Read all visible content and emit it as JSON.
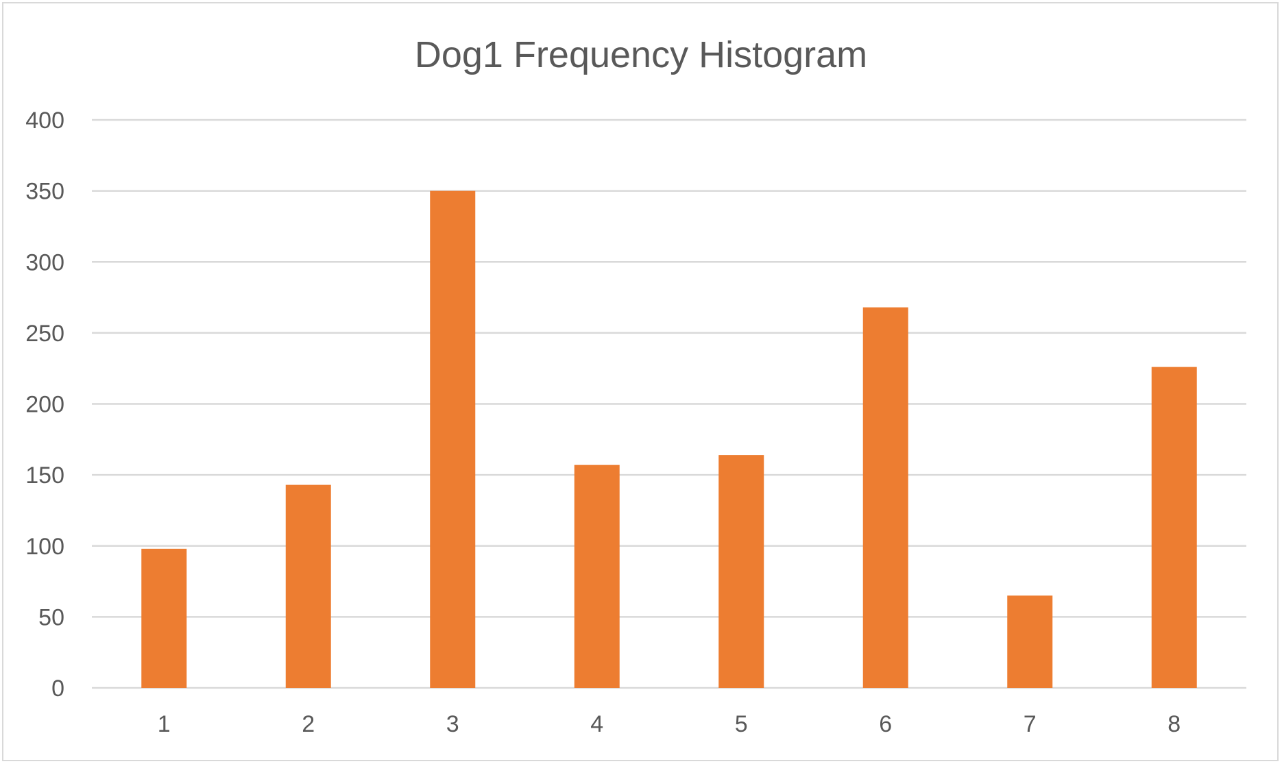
{
  "chart_data": {
    "type": "bar",
    "title": "Dog1 Frequency Histogram",
    "xlabel": "",
    "ylabel": "",
    "categories": [
      "1",
      "2",
      "3",
      "4",
      "5",
      "6",
      "7",
      "8"
    ],
    "values": [
      98,
      143,
      350,
      157,
      164,
      268,
      65,
      226
    ],
    "ylim": [
      0,
      400
    ],
    "yticks": [
      "0",
      "50",
      "100",
      "150",
      "200",
      "250",
      "300",
      "350",
      "400"
    ],
    "grid": true,
    "legend": "none",
    "bar_color": "#ED7D31"
  }
}
